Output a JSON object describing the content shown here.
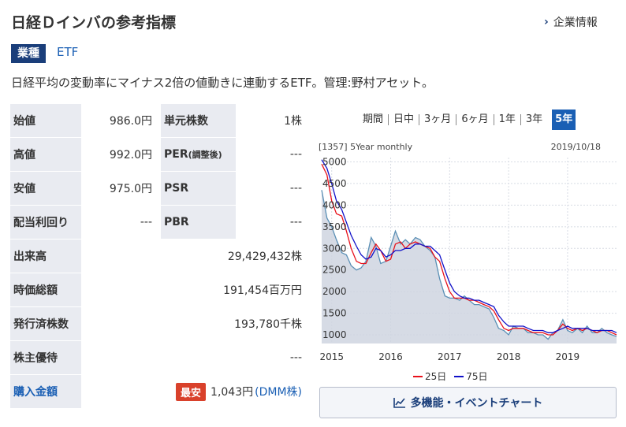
{
  "page": {
    "title": "日経Ｄインバの参考指標",
    "corp_link_label": "企業情報",
    "category_badge": "業種",
    "category_value": "ETF",
    "description": "日経平均の変動率にマイナス2倍の値動きに連動するETF。管理:野村アセット。"
  },
  "stats": {
    "open_label": "始値",
    "open_value": "986.0円",
    "unit_label": "単元株数",
    "unit_value": "1株",
    "high_label": "高値",
    "high_value": "992.0円",
    "per_label": "PER",
    "per_sub": "(調整後)",
    "per_value": "---",
    "low_label": "安値",
    "low_value": "975.0円",
    "psr_label": "PSR",
    "psr_value": "---",
    "dividend_label": "配当利回り",
    "dividend_value": "---",
    "pbr_label": "PBR",
    "pbr_value": "---",
    "volume_label": "出来高",
    "volume_value": "29,429,432株",
    "marketcap_label": "時価総額",
    "marketcap_value": "191,454百万円",
    "shares_label": "発行済株数",
    "shares_value": "193,780千株",
    "benefit_label": "株主優待",
    "benefit_value": "---",
    "buy_label": "購入金額",
    "buy_tag": "最安",
    "buy_value": "1,043円",
    "buy_link": "(DMM株)"
  },
  "periods": {
    "items": [
      "期間",
      "日中",
      "3ヶ月",
      "6ヶ月",
      "1年",
      "3年"
    ],
    "active": "5年"
  },
  "chart_data": {
    "type": "line",
    "code_label": "[1357] 5Year monthly",
    "date_label": "2019/10/18",
    "ylim": [
      800,
      5100
    ],
    "yticks": [
      1000,
      1500,
      2000,
      2500,
      3000,
      3500,
      4000,
      4500,
      5000
    ],
    "xticks": [
      {
        "label": "2015",
        "x": 2015.0
      },
      {
        "label": "2016",
        "x": 2016.0
      },
      {
        "label": "2017",
        "x": 2017.0
      },
      {
        "label": "2018",
        "x": 2018.0
      },
      {
        "label": "2019",
        "x": 2019.0
      }
    ],
    "xlim": [
      2014.83,
      2019.83
    ],
    "price": [
      [
        2014.83,
        4350
      ],
      [
        2014.92,
        3700
      ],
      [
        2015.0,
        3500
      ],
      [
        2015.08,
        3200
      ],
      [
        2015.17,
        2900
      ],
      [
        2015.25,
        2850
      ],
      [
        2015.33,
        2600
      ],
      [
        2015.42,
        2500
      ],
      [
        2015.5,
        2550
      ],
      [
        2015.58,
        2700
      ],
      [
        2015.67,
        3250
      ],
      [
        2015.75,
        3050
      ],
      [
        2015.83,
        2650
      ],
      [
        2015.92,
        2700
      ],
      [
        2016.0,
        3050
      ],
      [
        2016.08,
        3400
      ],
      [
        2016.17,
        3100
      ],
      [
        2016.25,
        3200
      ],
      [
        2016.33,
        3100
      ],
      [
        2016.42,
        3250
      ],
      [
        2016.5,
        3200
      ],
      [
        2016.58,
        3050
      ],
      [
        2016.67,
        2950
      ],
      [
        2016.75,
        2800
      ],
      [
        2016.83,
        2300
      ],
      [
        2016.92,
        1900
      ],
      [
        2017.0,
        1850
      ],
      [
        2017.08,
        1850
      ],
      [
        2017.17,
        1800
      ],
      [
        2017.25,
        1900
      ],
      [
        2017.33,
        1800
      ],
      [
        2017.42,
        1700
      ],
      [
        2017.5,
        1700
      ],
      [
        2017.58,
        1650
      ],
      [
        2017.67,
        1600
      ],
      [
        2017.75,
        1400
      ],
      [
        2017.83,
        1150
      ],
      [
        2017.92,
        1100
      ],
      [
        2018.0,
        1000
      ],
      [
        2018.08,
        1200
      ],
      [
        2018.17,
        1150
      ],
      [
        2018.25,
        1150
      ],
      [
        2018.33,
        1050
      ],
      [
        2018.42,
        1050
      ],
      [
        2018.5,
        1000
      ],
      [
        2018.58,
        1000
      ],
      [
        2018.67,
        900
      ],
      [
        2018.75,
        1050
      ],
      [
        2018.83,
        1100
      ],
      [
        2018.92,
        1350
      ],
      [
        2019.0,
        1100
      ],
      [
        2019.08,
        1050
      ],
      [
        2019.17,
        1150
      ],
      [
        2019.25,
        1050
      ],
      [
        2019.33,
        1200
      ],
      [
        2019.42,
        1050
      ],
      [
        2019.5,
        1050
      ],
      [
        2019.58,
        1150
      ],
      [
        2019.67,
        1050
      ],
      [
        2019.75,
        1000
      ],
      [
        2019.83,
        960
      ]
    ],
    "series": [
      {
        "name": "25日",
        "color": "#e8101a",
        "values": [
          [
            2014.83,
            4950
          ],
          [
            2014.92,
            4700
          ],
          [
            2015.0,
            4100
          ],
          [
            2015.08,
            3800
          ],
          [
            2015.17,
            3750
          ],
          [
            2015.25,
            3400
          ],
          [
            2015.33,
            3000
          ],
          [
            2015.42,
            2700
          ],
          [
            2015.5,
            2650
          ],
          [
            2015.58,
            2650
          ],
          [
            2015.67,
            2900
          ],
          [
            2015.75,
            3100
          ],
          [
            2015.83,
            2950
          ],
          [
            2015.92,
            2700
          ],
          [
            2016.0,
            2750
          ],
          [
            2016.08,
            3100
          ],
          [
            2016.17,
            3150
          ],
          [
            2016.25,
            3000
          ],
          [
            2016.33,
            3100
          ],
          [
            2016.42,
            3150
          ],
          [
            2016.5,
            3100
          ],
          [
            2016.58,
            3050
          ],
          [
            2016.67,
            3000
          ],
          [
            2016.75,
            2800
          ],
          [
            2016.83,
            2700
          ],
          [
            2016.92,
            2300
          ],
          [
            2017.0,
            2000
          ],
          [
            2017.08,
            1850
          ],
          [
            2017.17,
            1850
          ],
          [
            2017.25,
            1850
          ],
          [
            2017.33,
            1800
          ],
          [
            2017.42,
            1800
          ],
          [
            2017.5,
            1750
          ],
          [
            2017.58,
            1700
          ],
          [
            2017.67,
            1650
          ],
          [
            2017.75,
            1550
          ],
          [
            2017.83,
            1350
          ],
          [
            2017.92,
            1150
          ],
          [
            2018.0,
            1100
          ],
          [
            2018.08,
            1150
          ],
          [
            2018.17,
            1150
          ],
          [
            2018.25,
            1150
          ],
          [
            2018.33,
            1100
          ],
          [
            2018.42,
            1050
          ],
          [
            2018.5,
            1050
          ],
          [
            2018.58,
            1050
          ],
          [
            2018.67,
            1000
          ],
          [
            2018.75,
            1000
          ],
          [
            2018.83,
            1100
          ],
          [
            2018.92,
            1250
          ],
          [
            2019.0,
            1150
          ],
          [
            2019.08,
            1100
          ],
          [
            2019.17,
            1150
          ],
          [
            2019.25,
            1100
          ],
          [
            2019.33,
            1150
          ],
          [
            2019.42,
            1100
          ],
          [
            2019.5,
            1050
          ],
          [
            2019.58,
            1100
          ],
          [
            2019.67,
            1100
          ],
          [
            2019.75,
            1050
          ],
          [
            2019.83,
            1000
          ]
        ]
      },
      {
        "name": "75日",
        "color": "#1010c8",
        "values": [
          [
            2014.83,
            5050
          ],
          [
            2014.92,
            4850
          ],
          [
            2015.0,
            4500
          ],
          [
            2015.08,
            4100
          ],
          [
            2015.17,
            3900
          ],
          [
            2015.25,
            3600
          ],
          [
            2015.33,
            3300
          ],
          [
            2015.42,
            3050
          ],
          [
            2015.5,
            2850
          ],
          [
            2015.58,
            2750
          ],
          [
            2015.67,
            2800
          ],
          [
            2015.75,
            3000
          ],
          [
            2015.83,
            2950
          ],
          [
            2015.92,
            2800
          ],
          [
            2016.0,
            2850
          ],
          [
            2016.08,
            2950
          ],
          [
            2016.17,
            2950
          ],
          [
            2016.25,
            3000
          ],
          [
            2016.33,
            3000
          ],
          [
            2016.42,
            3100
          ],
          [
            2016.5,
            3100
          ],
          [
            2016.58,
            3050
          ],
          [
            2016.67,
            3050
          ],
          [
            2016.75,
            2950
          ],
          [
            2016.83,
            2850
          ],
          [
            2016.92,
            2500
          ],
          [
            2017.0,
            2200
          ],
          [
            2017.08,
            2000
          ],
          [
            2017.17,
            1900
          ],
          [
            2017.25,
            1850
          ],
          [
            2017.33,
            1850
          ],
          [
            2017.42,
            1800
          ],
          [
            2017.5,
            1800
          ],
          [
            2017.58,
            1750
          ],
          [
            2017.67,
            1700
          ],
          [
            2017.75,
            1650
          ],
          [
            2017.83,
            1450
          ],
          [
            2017.92,
            1300
          ],
          [
            2018.0,
            1200
          ],
          [
            2018.08,
            1200
          ],
          [
            2018.17,
            1200
          ],
          [
            2018.25,
            1200
          ],
          [
            2018.33,
            1150
          ],
          [
            2018.42,
            1100
          ],
          [
            2018.5,
            1100
          ],
          [
            2018.58,
            1100
          ],
          [
            2018.67,
            1050
          ],
          [
            2018.75,
            1050
          ],
          [
            2018.83,
            1100
          ],
          [
            2018.92,
            1150
          ],
          [
            2019.0,
            1200
          ],
          [
            2019.08,
            1150
          ],
          [
            2019.17,
            1150
          ],
          [
            2019.25,
            1150
          ],
          [
            2019.33,
            1150
          ],
          [
            2019.42,
            1100
          ],
          [
            2019.5,
            1100
          ],
          [
            2019.58,
            1100
          ],
          [
            2019.67,
            1100
          ],
          [
            2019.75,
            1100
          ],
          [
            2019.83,
            1050
          ]
        ]
      }
    ],
    "price_color": "#5a8fb5"
  },
  "buttons": {
    "multi_chart_label": "多機能・イベントチャート"
  }
}
